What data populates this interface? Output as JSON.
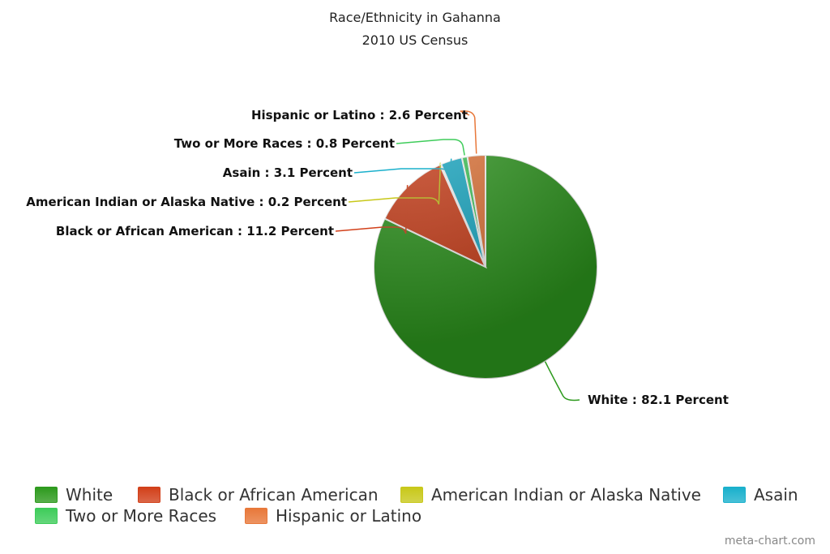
{
  "chart_data": {
    "type": "pie",
    "title": "Race/Ethnicity in Gahanna",
    "subtitle": "2010 US Census",
    "categories": [
      "White",
      "Black or African American",
      "American Indian or Alaska Native",
      "Asain",
      "Two or More Races",
      "Hispanic or Latino"
    ],
    "values": [
      82.1,
      11.2,
      0.2,
      3.1,
      0.8,
      2.6
    ],
    "data_labels": [
      "White : 82.1 Percent",
      "Black or African American : 11.2 Percent",
      "American Indian or Alaska Native : 0.2 Percent",
      "Asain : 3.1 Percent",
      "Two or More Races : 0.8 Percent",
      "Hispanic or Latino : 2.6 Percent"
    ],
    "colors": [
      "#2e9a1e",
      "#d2401a",
      "#c8c81a",
      "#1ab0cc",
      "#3ecc5a",
      "#e8783a"
    ],
    "legend_position": "bottom"
  },
  "watermark": "meta-chart.com"
}
